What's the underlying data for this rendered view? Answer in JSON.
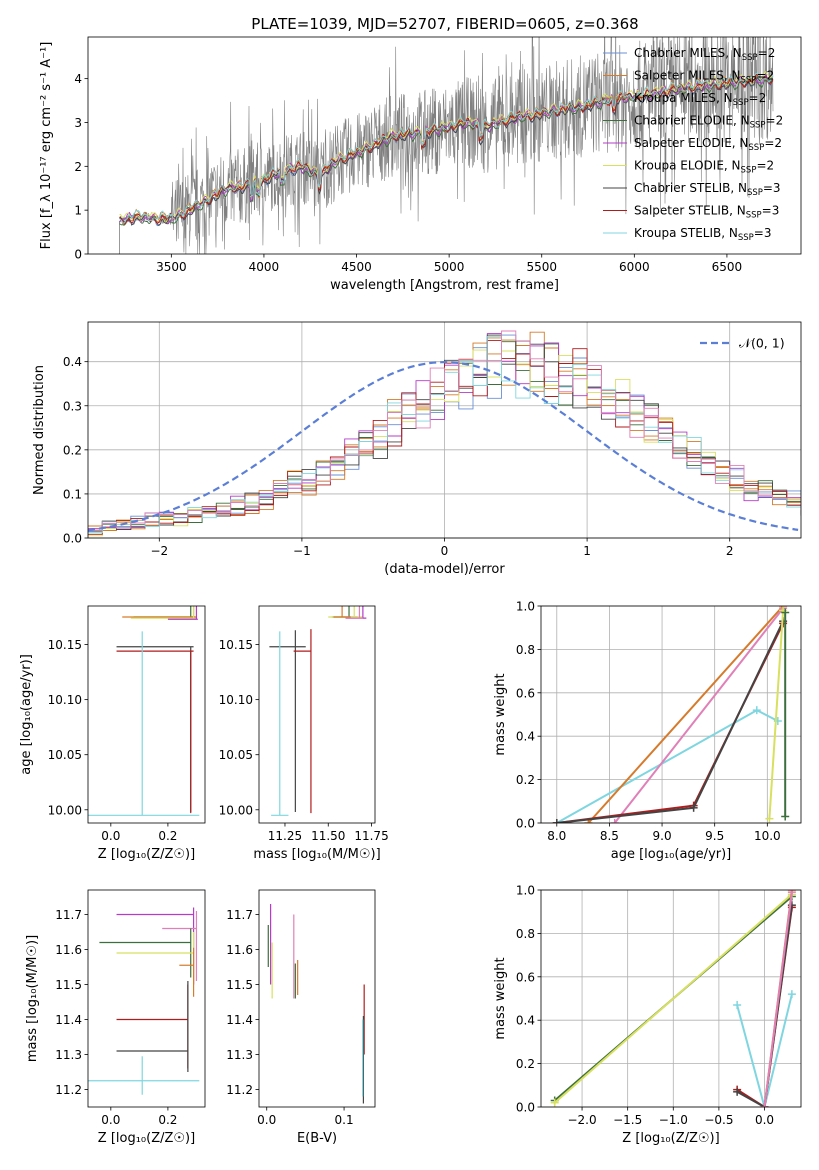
{
  "figure": {
    "title": "PLATE=1039, MJD=52707, FIBERID=0605, z=0.368"
  },
  "colors": {
    "Chabrier MILES": "#6b8fd6",
    "Salpeter MILES": "#d67a2b",
    "Kroupa MILES": "#d67a2b",
    "Chabrier ELODIE": "#3d6e3d",
    "Salpeter ELODIE": "#b43cc8",
    "Kroupa ELODIE": "#d8e060",
    "Chabrier STELIB": "#444444",
    "Salpeter STELIB": "#b01c1c",
    "Kroupa STELIB": "#7fd6e0",
    "pink": "#e080b8",
    "normal_curve": "#5b7fd6",
    "observed_spectrum": "#808080"
  },
  "chart_data": [
    {
      "id": "spectrum",
      "type": "line",
      "xlabel": "wavelength [Angstrom, rest frame]",
      "ylabel": "Flux [f_λ 10⁻¹⁷ erg cm⁻² s⁻¹ A⁻¹]",
      "xlim": [
        3050,
        6900
      ],
      "ylim": [
        0,
        4.95
      ],
      "xticks": [
        3500,
        4000,
        4500,
        5000,
        5500,
        6000,
        6500
      ],
      "yticks": [
        0,
        1,
        2,
        3,
        4
      ],
      "grid": false,
      "legend_position": "top-right",
      "legend": [
        {
          "label": "Chabrier MILES, N",
          "sub": "SSP",
          "suffix": "=2",
          "color_key": "Chabrier MILES"
        },
        {
          "label": "Salpeter MILES, N",
          "sub": "SSP",
          "suffix": "=2",
          "color_key": "Salpeter MILES"
        },
        {
          "label": "Kroupa MILES, N",
          "sub": "SSP",
          "suffix": "=2",
          "color_key": "Kroupa MILES"
        },
        {
          "label": "Chabrier ELODIE, N",
          "sub": "SSP",
          "suffix": "=2",
          "color_key": "Chabrier ELODIE"
        },
        {
          "label": "Salpeter ELODIE, N",
          "sub": "SSP",
          "suffix": "=2",
          "color_key": "Salpeter ELODIE"
        },
        {
          "label": "Kroupa ELODIE, N",
          "sub": "SSP",
          "suffix": "=2",
          "color_key": "Kroupa ELODIE"
        },
        {
          "label": "Chabrier STELIB, N",
          "sub": "SSP",
          "suffix": "=3",
          "color_key": "Chabrier STELIB"
        },
        {
          "label": "Salpeter STELIB, N",
          "sub": "SSP",
          "suffix": "=3",
          "color_key": "Salpeter STELIB"
        },
        {
          "label": "Kroupa STELIB, N",
          "sub": "SSP",
          "suffix": "=3",
          "color_key": "Kroupa STELIB"
        }
      ],
      "model_continuum": [
        [
          3220,
          0.75
        ],
        [
          3300,
          0.85
        ],
        [
          3400,
          0.82
        ],
        [
          3500,
          0.8
        ],
        [
          3600,
          1.0
        ],
        [
          3700,
          1.25
        ],
        [
          3800,
          1.5
        ],
        [
          3900,
          1.55
        ],
        [
          4000,
          1.7
        ],
        [
          4100,
          1.9
        ],
        [
          4200,
          2.0
        ],
        [
          4300,
          1.8
        ],
        [
          4400,
          2.15
        ],
        [
          4500,
          2.3
        ],
        [
          4600,
          2.5
        ],
        [
          4700,
          2.7
        ],
        [
          4800,
          2.75
        ],
        [
          4900,
          2.8
        ],
        [
          5000,
          2.9
        ],
        [
          5100,
          3.0
        ],
        [
          5200,
          2.9
        ],
        [
          5300,
          3.05
        ],
        [
          5400,
          3.15
        ],
        [
          5500,
          3.2
        ],
        [
          5600,
          3.3
        ],
        [
          5700,
          3.35
        ],
        [
          5800,
          3.45
        ],
        [
          5900,
          3.55
        ],
        [
          6000,
          3.6
        ],
        [
          6100,
          3.65
        ],
        [
          6200,
          3.75
        ],
        [
          6300,
          3.8
        ],
        [
          6400,
          3.85
        ],
        [
          6500,
          3.9
        ],
        [
          6600,
          3.95
        ],
        [
          6750,
          4.0
        ]
      ],
      "observed_range": [
        3220,
        6750
      ]
    },
    {
      "id": "residuals",
      "type": "histogram",
      "xlabel": "(data-model)/error",
      "ylabel": "Normed distribution",
      "xlim": [
        -2.5,
        2.5
      ],
      "ylim": [
        0,
        0.49
      ],
      "xticks": [
        -2,
        -1,
        0,
        1,
        2
      ],
      "yticks": [
        0.0,
        0.1,
        0.2,
        0.3,
        0.4
      ],
      "grid": true,
      "legend_position": "top-right",
      "legend": [
        {
          "label": "𝒩(0, 1)",
          "style": "dashed",
          "color_key": "normal_curve"
        }
      ],
      "bin_width": 0.1,
      "bin_start": -2.5,
      "base_values": [
        0.02,
        0.025,
        0.03,
        0.035,
        0.04,
        0.045,
        0.05,
        0.055,
        0.06,
        0.065,
        0.07,
        0.08,
        0.09,
        0.1,
        0.12,
        0.13,
        0.15,
        0.17,
        0.19,
        0.21,
        0.23,
        0.26,
        0.29,
        0.31,
        0.33,
        0.35,
        0.36,
        0.38,
        0.39,
        0.4,
        0.4,
        0.39,
        0.38,
        0.37,
        0.36,
        0.34,
        0.32,
        0.3,
        0.28,
        0.26,
        0.24,
        0.21,
        0.19,
        0.17,
        0.15,
        0.13,
        0.11,
        0.1,
        0.09,
        0.08,
        0.07,
        0.06,
        0.055,
        0.05,
        0.045,
        0.04,
        0.035,
        0.03,
        0.025,
        0.02
      ],
      "series_color_keys": [
        "Chabrier MILES",
        "Salpeter MILES",
        "Kroupa MILES",
        "Chabrier ELODIE",
        "Salpeter ELODIE",
        "Kroupa ELODIE",
        "Chabrier STELIB",
        "Salpeter STELIB",
        "Kroupa STELIB",
        "pink"
      ]
    },
    {
      "id": "age_vs_Z",
      "type": "errorbar",
      "xlabel": "Z [log₁₀(Z/Z☉)]",
      "ylabel": "age  [log₁₀(age/yr)]",
      "xlim": [
        -0.08,
        0.33
      ],
      "ylim": [
        9.988,
        10.185
      ],
      "xticks": [
        0.0,
        0.2
      ],
      "yticks": [
        10.0,
        10.05,
        10.1,
        10.15
      ],
      "points": [
        {
          "x": 0.28,
          "y": 10.175,
          "xerr": [
            0.2,
            0.015
          ],
          "yerr": [
            0.0,
            0.14
          ],
          "color_key": "Chabrier ELODIE"
        },
        {
          "x": 0.29,
          "y": 10.175,
          "xerr": [
            0.25,
            0.01
          ],
          "yerr": [
            0.0,
            0.13
          ],
          "color_key": "Salpeter MILES"
        },
        {
          "x": 0.29,
          "y": 10.174,
          "xerr": [
            0.22,
            0.01
          ],
          "yerr": [
            0.0,
            0.138
          ],
          "color_key": "Kroupa ELODIE"
        },
        {
          "x": 0.3,
          "y": 10.173,
          "xerr": [
            0.1,
            0.005
          ],
          "yerr": [
            0.0,
            0.137
          ],
          "color_key": "Salpeter ELODIE"
        },
        {
          "x": 0.28,
          "y": 10.148,
          "xerr": [
            0.26,
            0.01
          ],
          "yerr": [
            0.15,
            0.0
          ],
          "color_key": "Chabrier STELIB"
        },
        {
          "x": 0.28,
          "y": 10.144,
          "xerr": [
            0.26,
            0.01
          ],
          "yerr": [
            0.147,
            0.0
          ],
          "color_key": "Salpeter STELIB"
        },
        {
          "x": 0.11,
          "y": 9.995,
          "xerr": [
            0.2,
            0.2
          ],
          "yerr": [
            0.0,
            0.167
          ],
          "color_key": "Kroupa STELIB"
        }
      ]
    },
    {
      "id": "age_vs_mass",
      "type": "errorbar",
      "xlabel": "mass [log₁₀(M/M☉)]",
      "ylabel": "",
      "xlim": [
        11.1,
        11.77
      ],
      "ylim": [
        9.988,
        10.185
      ],
      "xticks": [
        11.25,
        11.5,
        11.75
      ],
      "yticks": [
        10.0,
        10.05,
        10.1,
        10.15
      ],
      "points": [
        {
          "x": 11.62,
          "y": 10.175,
          "xerr": [
            0.1,
            0.05
          ],
          "yerr": [
            0.0,
            0.1
          ],
          "color_key": "Chabrier ELODIE"
        },
        {
          "x": 11.65,
          "y": 10.175,
          "xerr": [
            0.15,
            0.05
          ],
          "yerr": [
            0.0,
            0.12
          ],
          "color_key": "Kroupa ELODIE"
        },
        {
          "x": 11.7,
          "y": 10.174,
          "xerr": [
            0.1,
            0.02
          ],
          "yerr": [
            0.0,
            0.14
          ],
          "color_key": "Salpeter ELODIE"
        },
        {
          "x": 11.58,
          "y": 10.175,
          "xerr": [
            0.05,
            0.05
          ],
          "yerr": [
            0.0,
            0.135
          ],
          "color_key": "Salpeter MILES"
        },
        {
          "x": 11.31,
          "y": 10.148,
          "xerr": [
            0.15,
            0.06
          ],
          "yerr": [
            0.15,
            0.015
          ],
          "color_key": "Chabrier STELIB"
        },
        {
          "x": 11.4,
          "y": 10.144,
          "xerr": [
            0.1,
            0.0
          ],
          "yerr": [
            0.147,
            0.02
          ],
          "color_key": "Salpeter STELIB"
        },
        {
          "x": 11.22,
          "y": 9.995,
          "xerr": [
            0.05,
            0.05
          ],
          "yerr": [
            0.0,
            0.167
          ],
          "color_key": "Kroupa STELIB"
        },
        {
          "x": 11.68,
          "y": 10.174,
          "xerr": [
            0.08,
            0.02
          ],
          "yerr": [
            0.0,
            0.1
          ],
          "color_key": "pink"
        }
      ]
    },
    {
      "id": "massweight_vs_age",
      "type": "line",
      "xlabel": "age  [log₁₀(age/yr)]",
      "ylabel": "mass weight",
      "xlim": [
        7.85,
        10.32
      ],
      "ylim": [
        0,
        1.0
      ],
      "xticks": [
        8.0,
        8.5,
        9.0,
        9.5,
        10.0
      ],
      "yticks": [
        0.0,
        0.2,
        0.4,
        0.6,
        0.8,
        1.0
      ],
      "grid": true,
      "series": [
        {
          "color_key": "Kroupa STELIB",
          "x": [
            8.0,
            9.9,
            10.1
          ],
          "y": [
            0.0,
            0.52,
            0.47
          ]
        },
        {
          "color_key": "Salpeter MILES",
          "x": [
            8.3,
            10.15
          ],
          "y": [
            0.0,
            1.0
          ]
        },
        {
          "color_key": "pink",
          "x": [
            8.55,
            10.15
          ],
          "y": [
            0.0,
            0.99
          ]
        },
        {
          "color_key": "Salpeter STELIB",
          "x": [
            8.0,
            9.3,
            10.15
          ],
          "y": [
            0.0,
            0.08,
            0.92
          ]
        },
        {
          "color_key": "Chabrier STELIB",
          "x": [
            8.0,
            9.3,
            10.15
          ],
          "y": [
            0.0,
            0.07,
            0.93
          ]
        },
        {
          "color_key": "Kroupa ELODIE",
          "x": [
            10.02,
            10.15
          ],
          "y": [
            0.02,
            0.98
          ]
        },
        {
          "color_key": "Chabrier ELODIE",
          "x": [
            10.17,
            10.17
          ],
          "y": [
            0.03,
            0.97
          ]
        }
      ]
    },
    {
      "id": "mass_vs_Z",
      "type": "errorbar",
      "xlabel": "Z [log₁₀(Z/Z☉)]",
      "ylabel": "mass [log₁₀(M/M☉)]",
      "xlim": [
        -0.08,
        0.33
      ],
      "ylim": [
        11.15,
        11.77
      ],
      "xticks": [
        0.0,
        0.2
      ],
      "yticks": [
        11.2,
        11.3,
        11.4,
        11.5,
        11.6,
        11.7
      ],
      "points": [
        {
          "x": 0.29,
          "y": 11.7,
          "xerr": [
            0.27,
            0.0
          ],
          "yerr": [
            0.2,
            0.02
          ],
          "color_key": "Salpeter ELODIE"
        },
        {
          "x": 0.3,
          "y": 11.66,
          "xerr": [
            0.12,
            0.0
          ],
          "yerr": [
            0.15,
            0.05
          ],
          "color_key": "pink"
        },
        {
          "x": 0.28,
          "y": 11.62,
          "xerr": [
            0.32,
            0.0
          ],
          "yerr": [
            0.1,
            0.04
          ],
          "color_key": "Chabrier ELODIE"
        },
        {
          "x": 0.29,
          "y": 11.59,
          "xerr": [
            0.27,
            0.0
          ],
          "yerr": [
            0.08,
            0.06
          ],
          "color_key": "Kroupa ELODIE"
        },
        {
          "x": 0.29,
          "y": 11.555,
          "xerr": [
            0.05,
            0.0
          ],
          "yerr": [
            0.09,
            0.05
          ],
          "color_key": "Salpeter MILES"
        },
        {
          "x": 0.27,
          "y": 11.4,
          "xerr": [
            0.25,
            0.0
          ],
          "yerr": [
            0.14,
            0.1
          ],
          "color_key": "Salpeter STELIB"
        },
        {
          "x": 0.27,
          "y": 11.31,
          "xerr": [
            0.25,
            0.0
          ],
          "yerr": [
            0.06,
            0.2
          ],
          "color_key": "Chabrier STELIB"
        },
        {
          "x": 0.11,
          "y": 11.225,
          "xerr": [
            0.2,
            0.2
          ],
          "yerr": [
            0.04,
            0.07
          ],
          "color_key": "Kroupa STELIB"
        }
      ]
    },
    {
      "id": "mass_vs_EBV",
      "type": "errorbar",
      "xlabel": "E(B-V)",
      "ylabel": "",
      "xlim": [
        -0.01,
        0.14
      ],
      "ylim": [
        11.15,
        11.77
      ],
      "xticks": [
        0.0,
        0.1
      ],
      "yticks": [
        11.2,
        11.3,
        11.4,
        11.5,
        11.6,
        11.7
      ],
      "points": [
        {
          "x": 0.002,
          "y": 11.63,
          "xerr": [
            0,
            0
          ],
          "yerr": [
            0.08,
            0.04
          ],
          "color_key": "Chabrier ELODIE"
        },
        {
          "x": 0.005,
          "y": 11.7,
          "xerr": [
            0,
            0
          ],
          "yerr": [
            0.2,
            0.03
          ],
          "color_key": "Salpeter ELODIE"
        },
        {
          "x": 0.007,
          "y": 11.6,
          "xerr": [
            0,
            0
          ],
          "yerr": [
            0.14,
            0.02
          ],
          "color_key": "Kroupa ELODIE"
        },
        {
          "x": 0.035,
          "y": 11.66,
          "xerr": [
            0,
            0
          ],
          "yerr": [
            0.2,
            0.04
          ],
          "color_key": "pink"
        },
        {
          "x": 0.037,
          "y": 11.52,
          "xerr": [
            0,
            0
          ],
          "yerr": [
            0.06,
            0.04
          ],
          "color_key": "Chabrier ELODIE"
        },
        {
          "x": 0.04,
          "y": 11.52,
          "xerr": [
            0,
            0
          ],
          "yerr": [
            0.05,
            0.05
          ],
          "color_key": "Salpeter MILES"
        },
        {
          "x": 0.126,
          "y": 11.4,
          "xerr": [
            0,
            0
          ],
          "yerr": [
            0.1,
            0.1
          ],
          "color_key": "Salpeter STELIB"
        },
        {
          "x": 0.125,
          "y": 11.31,
          "xerr": [
            0,
            0
          ],
          "yerr": [
            0.15,
            0.1
          ],
          "color_key": "Chabrier STELIB"
        },
        {
          "x": 0.124,
          "y": 11.3,
          "xerr": [
            0,
            0
          ],
          "yerr": [
            0.12,
            0.1
          ],
          "color_key": "Kroupa STELIB"
        }
      ]
    },
    {
      "id": "massweight_vs_Z",
      "type": "line",
      "xlabel": "Z [log₁₀(Z/Z☉)]",
      "ylabel": "mass weight",
      "xlim": [
        -2.45,
        0.4
      ],
      "ylim": [
        0,
        1.0
      ],
      "xticks": [
        -2.0,
        -1.5,
        -1.0,
        -0.5,
        0.0
      ],
      "yticks": [
        0.0,
        0.2,
        0.4,
        0.6,
        0.8,
        1.0
      ],
      "grid": true,
      "series": [
        {
          "color_key": "Chabrier ELODIE",
          "x": [
            -2.3,
            0.3
          ],
          "y": [
            0.03,
            0.97
          ]
        },
        {
          "color_key": "Kroupa ELODIE",
          "x": [
            -2.3,
            0.3
          ],
          "y": [
            0.02,
            0.98
          ]
        },
        {
          "color_key": "Kroupa STELIB",
          "x": [
            -0.3,
            0.0,
            0.3
          ],
          "y": [
            0.47,
            0.0,
            0.52
          ]
        },
        {
          "color_key": "Salpeter STELIB",
          "x": [
            -0.3,
            0.0,
            0.3
          ],
          "y": [
            0.08,
            0.0,
            0.92
          ]
        },
        {
          "color_key": "Chabrier STELIB",
          "x": [
            -0.3,
            0.0,
            0.3
          ],
          "y": [
            0.07,
            0.0,
            0.93
          ]
        },
        {
          "color_key": "Salpeter MILES",
          "x": [
            0.0,
            0.3
          ],
          "y": [
            0.0,
            1.0
          ]
        },
        {
          "color_key": "pink",
          "x": [
            0.0,
            0.3
          ],
          "y": [
            0.0,
            0.99
          ]
        }
      ]
    }
  ]
}
